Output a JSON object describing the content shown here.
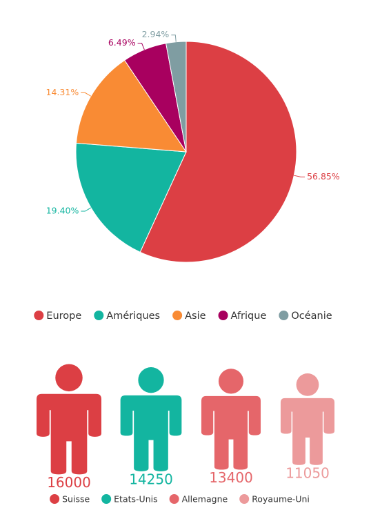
{
  "chart_data": [
    {
      "type": "pie",
      "categories": [
        "Europe",
        "Amériques",
        "Asie",
        "Afrique",
        "Océanie"
      ],
      "values": [
        56.85,
        19.4,
        14.31,
        6.49,
        2.94
      ],
      "value_labels": [
        "56.85%",
        "19.40%",
        "14.31%",
        "6.49%",
        "2.94%"
      ],
      "colors": [
        "#dc3f44",
        "#13b5a0",
        "#f98b34",
        "#a8005f",
        "#7f9da2"
      ]
    },
    {
      "type": "pictogram",
      "categories": [
        "Suisse",
        "Etats-Unis",
        "Allemagne",
        "Royaume-Uni"
      ],
      "values": [
        16000,
        14250,
        13400,
        11050
      ],
      "colors": [
        "#dc3f44",
        "#13b5a0",
        "#e5666a",
        "#ec9a9b"
      ]
    }
  ]
}
